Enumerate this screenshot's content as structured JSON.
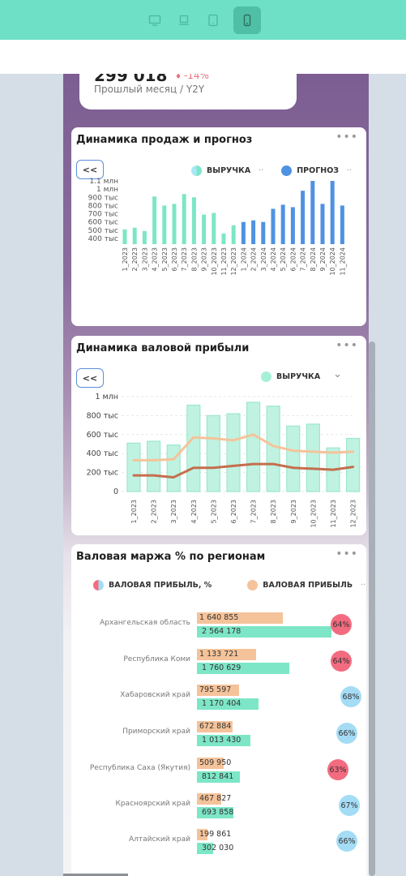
{
  "colors": {
    "topbar": "#6ee0c6",
    "green": "#7de6c6",
    "blue": "#4f92e3",
    "orange": "#f5c39a",
    "brown": "#c46e4d",
    "pink": "#f36b7f",
    "lightblue": "#a5dcf5"
  },
  "device_icons": [
    "desktop-icon",
    "laptop-icon",
    "tablet-icon",
    "phone-icon"
  ],
  "kpi": {
    "value": "299 018",
    "delta": "-14%",
    "subtitle": "Прошлый месяц / Y2Y"
  },
  "sales": {
    "title": "Динамика продаж и прогноз",
    "menu": "•••",
    "back": "<<",
    "legend_revenue": "ВЫРУЧКА",
    "legend_forecast": "ПРОГНОЗ",
    "legend_more": "··"
  },
  "gross": {
    "title": "Динамика валовой прибыли",
    "menu": "•••",
    "back": "<<",
    "legend_revenue": "ВЫРУЧКА",
    "chevron": "⌄"
  },
  "margin": {
    "title": "Валовая маржа % по регионам",
    "menu": "•••",
    "legend_pct": "ВАЛОВАЯ ПРИБЫЛЬ, %",
    "legend_profit": "ВАЛОВАЯ ПРИБЫЛЬ",
    "legend_more": "··"
  },
  "chart_data": [
    {
      "type": "bar",
      "title": "Динамика продаж и прогноз",
      "categories": [
        "1_2023",
        "2_2023",
        "3_2023",
        "4_2023",
        "5_2023",
        "6_2023",
        "7_2023",
        "8_2023",
        "9_2023",
        "10_2023",
        "11_2023",
        "12_2023",
        "1_2024",
        "2_2024",
        "3_2024",
        "4_2024",
        "5_2024",
        "6_2024",
        "7_2024",
        "8_2024",
        "9_2024",
        "10_2024",
        "11_2024"
      ],
      "series": [
        {
          "name": "ВЫРУЧКА",
          "color": "#7de6c6",
          "values": [
            510000,
            530000,
            490000,
            910000,
            800000,
            820000,
            940000,
            900000,
            690000,
            710000,
            460000,
            560000,
            null,
            null,
            null,
            null,
            null,
            null,
            null,
            null,
            null,
            null,
            null
          ]
        },
        {
          "name": "ПРОГНОЗ",
          "color": "#4f92e3",
          "values": [
            null,
            null,
            null,
            null,
            null,
            null,
            null,
            null,
            null,
            null,
            null,
            null,
            600000,
            620000,
            600000,
            760000,
            810000,
            780000,
            980000,
            1100000,
            820000,
            1100000,
            800000
          ]
        }
      ],
      "yticks": [
        "400 тыс",
        "500 тыс",
        "600 тыс",
        "700 тыс",
        "800 тыс",
        "900 тыс",
        "1 млн",
        "1.1 млн"
      ],
      "ylim": [
        350000,
        1100000
      ]
    },
    {
      "type": "bar",
      "title": "Динамика валовой прибыли",
      "categories": [
        "1_2023",
        "2_2023",
        "3_2023",
        "4_2023",
        "5_2023",
        "6_2023",
        "7_2023",
        "8_2023",
        "9_2023",
        "10_2023",
        "11_2023",
        "12_2023"
      ],
      "series": [
        {
          "name": "ВЫРУЧКА",
          "color": "#7de6c6",
          "values": [
            510000,
            530000,
            490000,
            910000,
            800000,
            820000,
            940000,
            900000,
            690000,
            710000,
            460000,
            560000
          ]
        },
        {
          "name": "",
          "color": "#f5c39a",
          "type": "line",
          "values": [
            330000,
            330000,
            340000,
            570000,
            560000,
            540000,
            600000,
            480000,
            430000,
            420000,
            410000,
            420000
          ]
        },
        {
          "name": "",
          "color": "#c46e4d",
          "type": "line",
          "values": [
            170000,
            170000,
            150000,
            250000,
            250000,
            270000,
            290000,
            290000,
            250000,
            240000,
            230000,
            260000
          ]
        }
      ],
      "yticks": [
        "0",
        "200 тыс",
        "400 тыс",
        "600 тыс",
        "800 тыс",
        "1 млн"
      ],
      "ylim": [
        0,
        1000000
      ]
    },
    {
      "type": "bar",
      "title": "Валовая маржа % по регионам",
      "categories": [
        "Архангельская область",
        "Республика Коми",
        "Хабаровский край",
        "Приморский край",
        "Республика Саха (Якутия)",
        "Красноярский край",
        "Алтайский край"
      ],
      "series": [
        {
          "name": "ВАЛОВАЯ ПРИБЫЛЬ",
          "color": "#f5c39a",
          "values": [
            1640855,
            1133721,
            795597,
            672884,
            509950,
            467827,
            199861
          ],
          "labels": [
            "1 640 855",
            "1 133 721",
            "795 597",
            "672 884",
            "509 950",
            "467 827",
            "199 861"
          ]
        },
        {
          "name": "",
          "color": "#7de6c6",
          "values": [
            2564178,
            1760629,
            1170404,
            1013430,
            812841,
            693858,
            302030
          ],
          "labels": [
            "2 564 178",
            "1 760 629",
            "1 170 404",
            "1 013 430",
            "812 841",
            "693 858",
            "302 030"
          ]
        },
        {
          "name": "ВАЛОВАЯ ПРИБЫЛЬ, %",
          "values": [
            64,
            64,
            68,
            66,
            63,
            67,
            66
          ],
          "labels": [
            "64%",
            "64%",
            "68%",
            "66%",
            "63%",
            "67%",
            "66%"
          ]
        }
      ],
      "xlim": [
        0,
        2564178
      ]
    }
  ]
}
